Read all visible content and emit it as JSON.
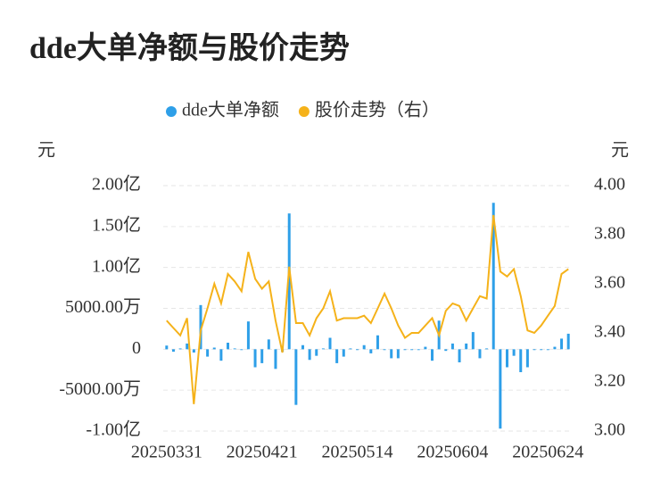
{
  "chart_data": {
    "type": "bar",
    "title": "dde大单净额与股价走势",
    "y_axis_label": "元",
    "y2_axis_label": "元",
    "categories": [
      "20250331",
      null,
      null,
      null,
      null,
      null,
      null,
      null,
      null,
      null,
      null,
      null,
      null,
      null,
      "20250421",
      null,
      null,
      null,
      null,
      null,
      null,
      null,
      null,
      null,
      null,
      null,
      null,
      null,
      "20250514",
      null,
      null,
      null,
      null,
      null,
      null,
      null,
      null,
      null,
      null,
      null,
      null,
      null,
      "20250604",
      null,
      null,
      null,
      null,
      null,
      null,
      null,
      null,
      null,
      null,
      null,
      null,
      null,
      "20250624",
      null,
      null,
      null
    ],
    "series": [
      {
        "name": "dde大单净额",
        "type": "bar",
        "color": "#2e9fe8",
        "axis": "y",
        "values": [
          450,
          -300,
          100,
          700,
          -400,
          5400,
          -900,
          200,
          -1400,
          800,
          100,
          -100,
          3400,
          -2200,
          -1700,
          1200,
          -2400,
          -300,
          16600,
          -6800,
          500,
          -1300,
          -800,
          100,
          1400,
          -1700,
          -900,
          100,
          -100,
          500,
          -500,
          1700,
          -100,
          -1100,
          -1100,
          -100,
          -100,
          -100,
          300,
          -1400,
          3500,
          -200,
          700,
          -1600,
          700,
          2100,
          -1100,
          100,
          17900,
          -9700,
          -2200,
          -800,
          -2800,
          -2200,
          -100,
          -100,
          -100,
          300,
          1300,
          1900
        ]
      },
      {
        "name": "股价走势（右）",
        "type": "line",
        "color": "#f5b21a",
        "axis": "y2",
        "values": [
          3.45,
          3.42,
          3.39,
          3.46,
          3.11,
          3.41,
          3.5,
          3.6,
          3.52,
          3.64,
          3.61,
          3.57,
          3.73,
          3.62,
          3.58,
          3.61,
          3.45,
          3.32,
          3.67,
          3.44,
          3.44,
          3.39,
          3.46,
          3.5,
          3.57,
          3.45,
          3.46,
          3.46,
          3.46,
          3.47,
          3.44,
          3.5,
          3.56,
          3.5,
          3.43,
          3.38,
          3.4,
          3.4,
          3.43,
          3.46,
          3.39,
          3.49,
          3.52,
          3.51,
          3.45,
          3.5,
          3.55,
          3.54,
          3.88,
          3.65,
          3.63,
          3.66,
          3.55,
          3.41,
          3.4,
          3.43,
          3.47,
          3.51,
          3.64,
          3.66
        ]
      }
    ],
    "ylim": [
      -10000,
      20000
    ],
    "yticks": [
      {
        "value": 20000,
        "label": "2.00亿"
      },
      {
        "value": 15000,
        "label": "1.50亿"
      },
      {
        "value": 10000,
        "label": "1.00亿"
      },
      {
        "value": 5000,
        "label": "5000.00万"
      },
      0,
      {
        "value": -5000,
        "label": "-5000.00万"
      },
      {
        "value": -10000,
        "label": "-1.00亿"
      }
    ],
    "y2lim": [
      3,
      4
    ],
    "y2ticks": [
      {
        "value": 4,
        "label": "4.00"
      },
      {
        "value": 3.8,
        "label": "3.80"
      },
      {
        "value": 3.6,
        "label": "3.60"
      },
      {
        "value": 3.4,
        "label": "3.40"
      },
      {
        "value": 3.2,
        "label": "3.20"
      },
      {
        "value": 3,
        "label": "3.00"
      }
    ],
    "grid": true,
    "legend": "top"
  }
}
